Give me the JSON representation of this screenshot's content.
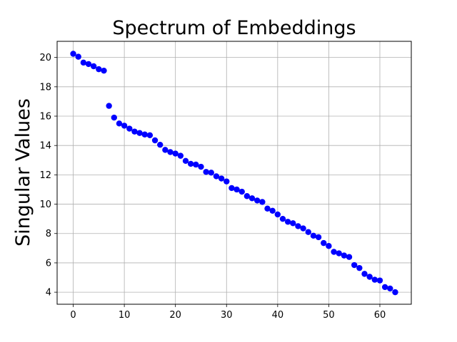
{
  "chart_data": {
    "type": "scatter",
    "title": "Spectrum of Embeddings",
    "xlabel": "",
    "ylabel": "Singular Values",
    "xlim": [
      -3.15,
      66.15
    ],
    "ylim": [
      3.18,
      21.1
    ],
    "xticks": [
      0,
      10,
      20,
      30,
      40,
      50,
      60
    ],
    "yticks": [
      4,
      6,
      8,
      10,
      12,
      14,
      16,
      18,
      20
    ],
    "grid": true,
    "marker_color": "#0000ff",
    "series": [
      {
        "x": [
          0,
          1,
          2,
          3,
          4,
          5,
          6,
          7,
          8,
          9,
          10,
          11,
          12,
          13,
          14,
          15,
          16,
          17,
          18,
          19,
          20,
          21,
          22,
          23,
          24,
          25,
          26,
          27,
          28,
          29,
          30,
          31,
          32,
          33,
          34,
          35,
          36,
          37,
          38,
          39,
          40,
          41,
          42,
          43,
          44,
          45,
          46,
          47,
          48,
          49,
          50,
          51,
          52,
          53,
          54,
          55,
          56,
          57,
          58,
          59,
          60,
          61,
          62,
          63
        ],
        "values": [
          20.25,
          20.05,
          19.65,
          19.55,
          19.4,
          19.2,
          19.1,
          16.7,
          15.9,
          15.5,
          15.35,
          15.15,
          14.95,
          14.85,
          14.75,
          14.7,
          14.35,
          14.05,
          13.7,
          13.55,
          13.45,
          13.3,
          12.95,
          12.75,
          12.7,
          12.55,
          12.2,
          12.15,
          11.9,
          11.75,
          11.55,
          11.1,
          11.0,
          10.85,
          10.55,
          10.4,
          10.25,
          10.15,
          9.7,
          9.55,
          9.3,
          9.0,
          8.8,
          8.7,
          8.5,
          8.35,
          8.1,
          7.85,
          7.75,
          7.35,
          7.15,
          6.75,
          6.65,
          6.5,
          6.4,
          5.85,
          5.65,
          5.25,
          5.05,
          4.85,
          4.8,
          4.35,
          4.25,
          4.0
        ]
      }
    ]
  }
}
